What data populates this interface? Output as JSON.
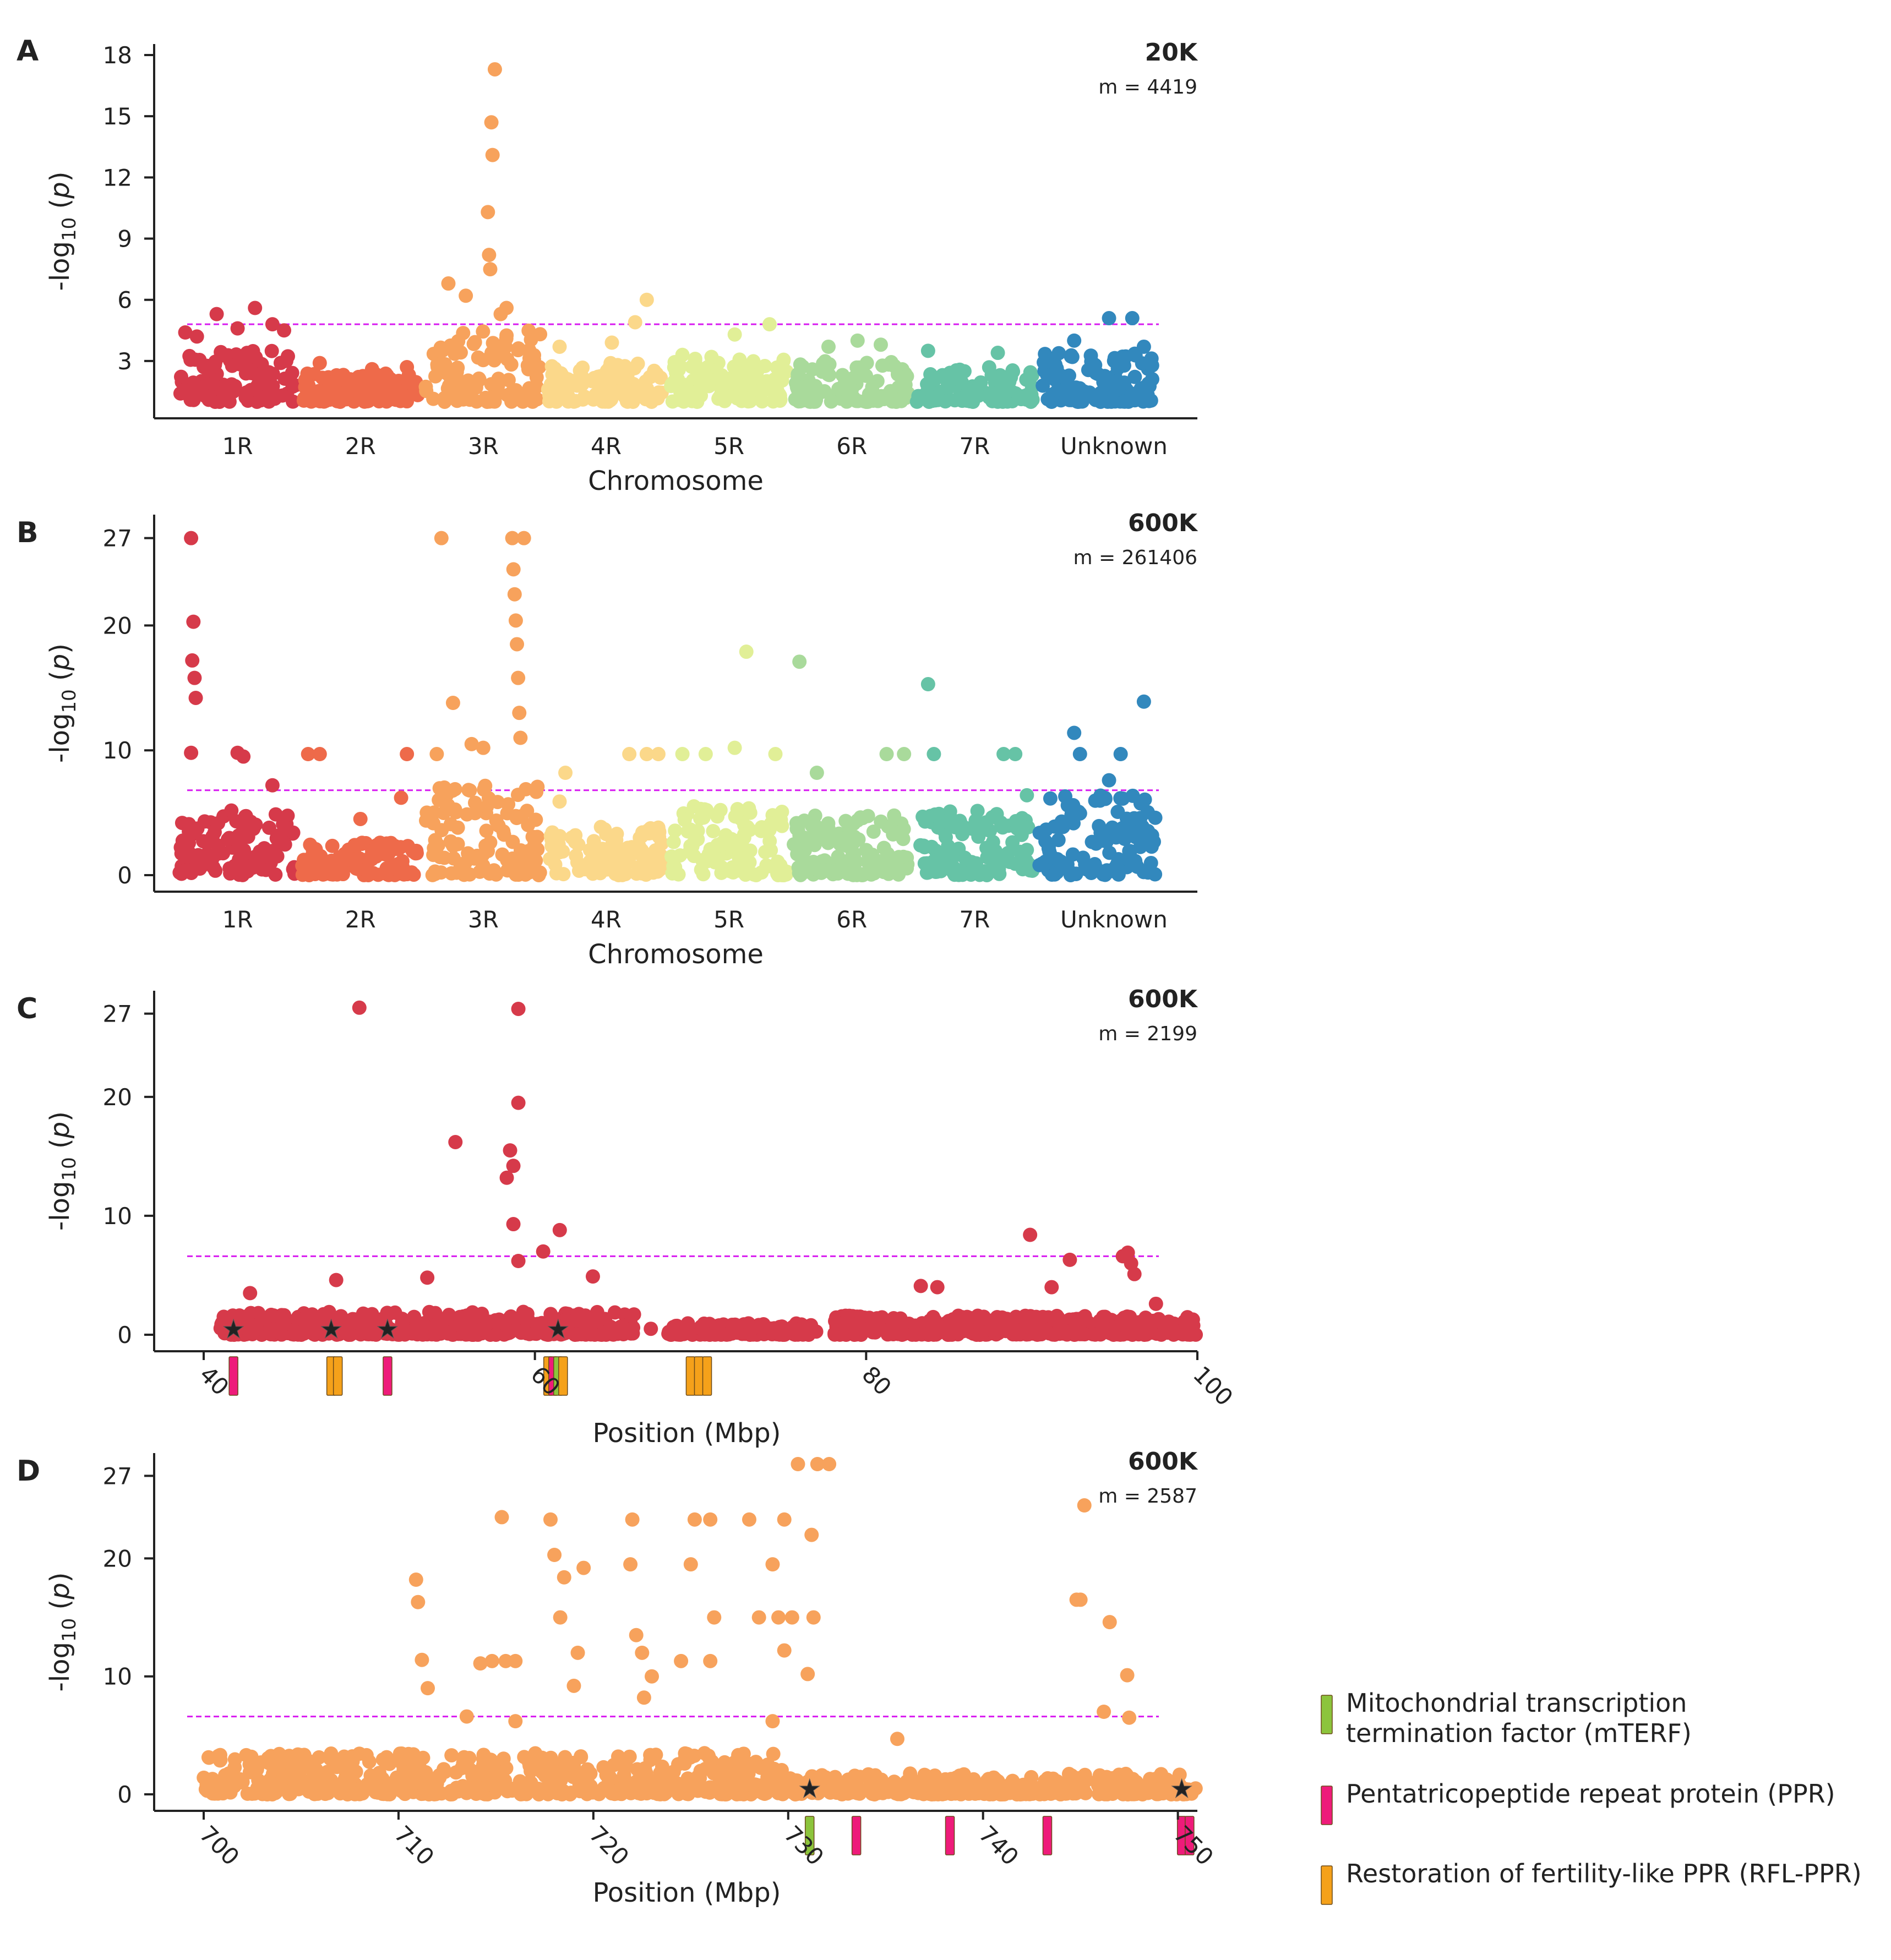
{
  "legend": [
    {
      "label": [
        "Mitochondrial transcription",
        "termination factor (mTERF)"
      ],
      "color": "#8cc43c"
    },
    {
      "label": [
        "Pentatricopeptide repeat protein (PPR)"
      ],
      "color": "#ee1b7a"
    },
    {
      "label": [
        "Restoration of fertility-like PPR (RFL-PPR)"
      ],
      "color": "#f5a11a"
    }
  ],
  "chart_data": [
    {
      "panel": "A",
      "type": "scatter",
      "title": "20K",
      "subtitle": "m = 4419",
      "ylabel": "-log10 (p)",
      "xlabel": "Chromosome",
      "ylim": [
        1,
        18
      ],
      "yticks": [
        3,
        6,
        9,
        12,
        15,
        18
      ],
      "threshold": 4.8,
      "chromosomes": [
        {
          "name": "1R",
          "color": "#d63a4a",
          "label_show": true,
          "peaks": [
            [
              0.05,
              4.4
            ],
            [
              0.15,
              4.2
            ],
            [
              0.32,
              5.3
            ],
            [
              0.5,
              4.6
            ],
            [
              0.65,
              5.6
            ],
            [
              0.8,
              4.8
            ],
            [
              0.9,
              4.5
            ]
          ],
          "base": 3.5
        },
        {
          "name": "2R",
          "color": "#ee6a4a",
          "label_show": true,
          "peaks": [
            [
              0.15,
              2.9
            ],
            [
              0.6,
              2.6
            ],
            [
              0.9,
              2.7
            ]
          ],
          "base": 2.4
        },
        {
          "name": "3R",
          "color": "#f7a25c",
          "label_show": true,
          "peaks": [
            [
              0.2,
              6.8
            ],
            [
              0.35,
              6.2
            ],
            [
              0.6,
              17.3
            ],
            [
              0.57,
              14.7
            ],
            [
              0.58,
              13.1
            ],
            [
              0.54,
              10.3
            ],
            [
              0.55,
              8.2
            ],
            [
              0.56,
              7.5
            ],
            [
              0.7,
              5.6
            ],
            [
              0.65,
              5.3
            ]
          ],
          "base": 4.5
        },
        {
          "name": "4R",
          "color": "#fbd88a",
          "label_show": true,
          "peaks": [
            [
              0.1,
              3.7
            ],
            [
              0.55,
              3.9
            ],
            [
              0.75,
              4.9
            ],
            [
              0.85,
              6.0
            ]
          ],
          "base": 3.0
        },
        {
          "name": "5R",
          "color": "#e1ef97",
          "label_show": true,
          "peaks": [
            [
              0.1,
              3.3
            ],
            [
              0.55,
              4.3
            ],
            [
              0.85,
              4.8
            ],
            [
              0.35,
              3.2
            ]
          ],
          "base": 3.2
        },
        {
          "name": "6R",
          "color": "#a9da9b",
          "label_show": true,
          "peaks": [
            [
              0.3,
              3.7
            ],
            [
              0.55,
              4.0
            ],
            [
              0.75,
              3.8
            ]
          ],
          "base": 3.0
        },
        {
          "name": "7R",
          "color": "#66c3a6",
          "label_show": true,
          "peaks": [
            [
              0.1,
              3.5
            ],
            [
              0.7,
              3.4
            ]
          ],
          "base": 2.8
        },
        {
          "name": "Unknown",
          "color": "#3288bd",
          "label_show": true,
          "peaks": [
            [
              0.6,
              5.1
            ],
            [
              0.8,
              5.1
            ],
            [
              0.3,
              4.0
            ],
            [
              0.9,
              3.7
            ]
          ],
          "base": 3.4
        }
      ]
    },
    {
      "panel": "B",
      "type": "scatter",
      "title": "600K",
      "subtitle": "m = 261406",
      "ylabel": "-log10 (p)",
      "xlabel": "Chromosome",
      "ylim": [
        0,
        28
      ],
      "yticks": [
        0,
        10,
        20,
        27
      ],
      "threshold": 6.8,
      "chromosomes": [
        {
          "name": "1R",
          "color": "#d63a4a",
          "label_show": true,
          "peaks": [
            [
              0.1,
              27
            ],
            [
              0.12,
              20.3
            ],
            [
              0.11,
              17.2
            ],
            [
              0.13,
              15.8
            ],
            [
              0.14,
              14.2
            ],
            [
              0.1,
              9.8
            ],
            [
              0.5,
              9.8
            ],
            [
              0.55,
              9.5
            ],
            [
              0.8,
              7.2
            ]
          ],
          "base": 5.2
        },
        {
          "name": "2R",
          "color": "#ee6a4a",
          "label_show": true,
          "peaks": [
            [
              0.05,
              9.7
            ],
            [
              0.15,
              9.7
            ],
            [
              0.5,
              4.5
            ],
            [
              0.9,
              9.7
            ],
            [
              0.85,
              6.2
            ]
          ],
          "base": 2.6
        },
        {
          "name": "3R",
          "color": "#f7a25c",
          "label_show": true,
          "peaks": [
            [
              0.1,
              9.7
            ],
            [
              0.14,
              27
            ],
            [
              0.24,
              13.8
            ],
            [
              0.4,
              10.5
            ],
            [
              0.5,
              10.2
            ],
            [
              0.75,
              27
            ],
            [
              0.85,
              27
            ],
            [
              0.76,
              24.5
            ],
            [
              0.77,
              22.5
            ],
            [
              0.78,
              20.4
            ],
            [
              0.79,
              18.5
            ],
            [
              0.8,
              15.8
            ],
            [
              0.81,
              13
            ],
            [
              0.82,
              11
            ]
          ],
          "base": 7.2
        },
        {
          "name": "4R",
          "color": "#fbd88a",
          "label_show": true,
          "peaks": [
            [
              0.1,
              5.9
            ],
            [
              0.15,
              8.2
            ],
            [
              0.7,
              9.7
            ],
            [
              0.85,
              9.7
            ],
            [
              0.95,
              9.7
            ]
          ],
          "base": 4.0
        },
        {
          "name": "5R",
          "color": "#e1ef97",
          "label_show": true,
          "peaks": [
            [
              0.1,
              9.7
            ],
            [
              0.3,
              9.7
            ],
            [
              0.55,
              10.2
            ],
            [
              0.65,
              17.9
            ],
            [
              0.9,
              9.7
            ]
          ],
          "base": 5.6
        },
        {
          "name": "6R",
          "color": "#a9da9b",
          "label_show": true,
          "peaks": [
            [
              0.05,
              17.1
            ],
            [
              0.2,
              8.2
            ],
            [
              0.8,
              9.7
            ],
            [
              0.95,
              9.7
            ]
          ],
          "base": 4.8
        },
        {
          "name": "7R",
          "color": "#66c3a6",
          "label_show": true,
          "peaks": [
            [
              0.1,
              15.3
            ],
            [
              0.15,
              9.7
            ],
            [
              0.75,
              9.7
            ],
            [
              0.85,
              9.7
            ],
            [
              0.95,
              6.4
            ]
          ],
          "base": 5.2
        },
        {
          "name": "Unknown",
          "color": "#3288bd",
          "label_show": true,
          "peaks": [
            [
              0.3,
              11.4
            ],
            [
              0.35,
              9.7
            ],
            [
              0.7,
              9.7
            ],
            [
              0.9,
              13.9
            ],
            [
              0.6,
              7.6
            ]
          ],
          "base": 6.4
        }
      ]
    },
    {
      "panel": "C",
      "type": "scatter",
      "title": "600K",
      "subtitle": "m = 2199",
      "ylabel": "-log10 (p)",
      "xlabel": "Position (Mbp)",
      "color": "#d63a4a",
      "xlim": [
        40,
        100
      ],
      "ylim": [
        0,
        28
      ],
      "xticks": [
        40,
        60,
        80,
        100
      ],
      "yticks": [
        0,
        10,
        20,
        27
      ],
      "threshold": 6.6,
      "peaks": [
        [
          49.4,
          27.5
        ],
        [
          55.2,
          16.2
        ],
        [
          58.5,
          15.5
        ],
        [
          58.7,
          14.2
        ],
        [
          58.3,
          13.2
        ],
        [
          59,
          27.4
        ],
        [
          59,
          19.5
        ],
        [
          58.7,
          9.3
        ],
        [
          59,
          6.2
        ],
        [
          61.5,
          8.8
        ],
        [
          60.5,
          7.0
        ],
        [
          53.5,
          4.8
        ],
        [
          48,
          4.6
        ],
        [
          63.5,
          4.9
        ],
        [
          83.3,
          4.1
        ],
        [
          84.3,
          4.0
        ],
        [
          89.9,
          8.4
        ],
        [
          91.2,
          4.0
        ],
        [
          92.3,
          6.3
        ],
        [
          95.5,
          6.6
        ],
        [
          95.8,
          6.9
        ],
        [
          96,
          6.0
        ],
        [
          96.2,
          5.1
        ],
        [
          97.5,
          2.6
        ],
        [
          42.8,
          3.5
        ],
        [
          67,
          0.5
        ]
      ],
      "dense_ranges": [
        [
          41,
          66,
          1.2
        ],
        [
          68,
          77,
          0.6
        ],
        [
          78,
          100,
          1.0
        ]
      ],
      "genes": [
        {
          "pos": 41.8,
          "class": "PPR",
          "star": true
        },
        {
          "pos": 47.7,
          "class": "RFL-PPR",
          "star": true
        },
        {
          "pos": 48.1,
          "class": "RFL-PPR",
          "star": false
        },
        {
          "pos": 51.1,
          "class": "PPR",
          "star": true
        },
        {
          "pos": 60.8,
          "class": "RFL-PPR",
          "star": false
        },
        {
          "pos": 61.1,
          "class": "PPR",
          "star": false
        },
        {
          "pos": 61.4,
          "class": "mTERF",
          "star": true
        },
        {
          "pos": 61.7,
          "class": "RFL-PPR",
          "star": false
        },
        {
          "pos": 69.4,
          "class": "RFL-PPR",
          "star": false
        },
        {
          "pos": 69.9,
          "class": "RFL-PPR",
          "star": false
        },
        {
          "pos": 70.4,
          "class": "RFL-PPR",
          "star": false
        }
      ]
    },
    {
      "panel": "D",
      "type": "scatter",
      "title": "600K",
      "subtitle": "m = 2587",
      "ylabel": "-log10 (p)",
      "xlabel": "Position (Mbp)",
      "color": "#f7a25c",
      "xlim": [
        700,
        751
      ],
      "ylim": [
        0,
        28
      ],
      "xticks": [
        700,
        710,
        720,
        730,
        740,
        750
      ],
      "yticks": [
        0,
        10,
        20,
        27
      ],
      "threshold": 6.6,
      "peaks": [
        [
          710.9,
          18.2
        ],
        [
          711,
          16.3
        ],
        [
          711.2,
          11.4
        ],
        [
          711.5,
          9.0
        ],
        [
          714.2,
          11.1
        ],
        [
          714.8,
          11.3
        ],
        [
          715.5,
          11.3
        ],
        [
          716,
          11.3
        ],
        [
          715.3,
          23.5
        ],
        [
          717.8,
          23.3
        ],
        [
          718,
          20.3
        ],
        [
          718.5,
          18.4
        ],
        [
          719.5,
          19.2
        ],
        [
          718.3,
          15.0
        ],
        [
          719.2,
          12.0
        ],
        [
          719,
          9.2
        ],
        [
          722,
          23.3
        ],
        [
          721.9,
          19.5
        ],
        [
          722.2,
          13.5
        ],
        [
          722.5,
          12.0
        ],
        [
          722.6,
          8.2
        ],
        [
          723,
          10.0
        ],
        [
          724.5,
          11.3
        ],
        [
          725.2,
          23.3
        ],
        [
          725,
          19.5
        ],
        [
          726,
          23.3
        ],
        [
          726.2,
          15.0
        ],
        [
          726,
          11.3
        ],
        [
          728,
          23.3
        ],
        [
          729.8,
          23.3
        ],
        [
          728.5,
          15.0
        ],
        [
          729.5,
          15.0
        ],
        [
          730.2,
          15.0
        ],
        [
          729.2,
          19.5
        ],
        [
          729.8,
          12.2
        ],
        [
          730.5,
          28.0
        ],
        [
          731.5,
          28.0
        ],
        [
          732.1,
          28.0
        ],
        [
          731.2,
          22.0
        ],
        [
          731.3,
          15.0
        ],
        [
          731,
          10.2
        ],
        [
          729.2,
          6.2
        ],
        [
          735.6,
          4.7
        ],
        [
          745.2,
          24.5
        ],
        [
          744.8,
          16.5
        ],
        [
          745,
          16.5
        ],
        [
          746.5,
          14.6
        ],
        [
          747.4,
          10.1
        ],
        [
          746.2,
          7.0
        ],
        [
          747.5,
          6.5
        ],
        [
          713.5,
          6.6
        ],
        [
          716,
          6.2
        ]
      ],
      "dense_ranges": [
        [
          700,
          730,
          2.2
        ],
        [
          730,
          751,
          1.1
        ]
      ],
      "genes": [
        {
          "pos": 731.1,
          "class": "mTERF",
          "star": true
        },
        {
          "pos": 733.5,
          "class": "PPR",
          "star": false
        },
        {
          "pos": 738.3,
          "class": "PPR",
          "star": false
        },
        {
          "pos": 743.3,
          "class": "PPR",
          "star": false
        },
        {
          "pos": 750.2,
          "class": "PPR",
          "star": true
        },
        {
          "pos": 750.6,
          "class": "PPR",
          "star": false
        }
      ]
    }
  ]
}
